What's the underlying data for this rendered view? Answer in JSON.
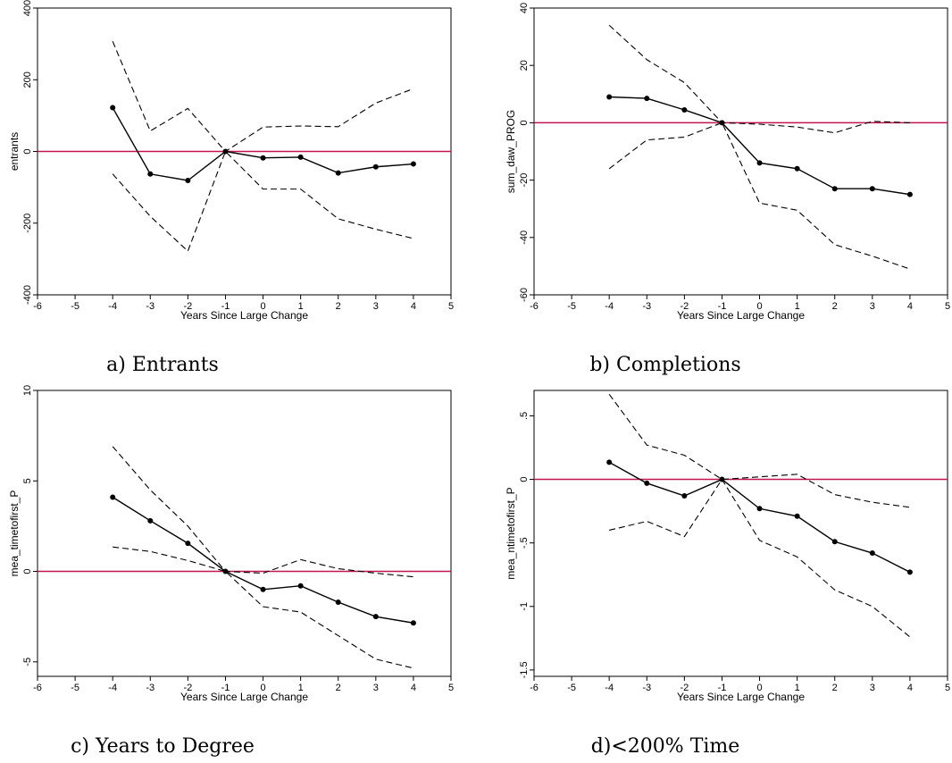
{
  "chart_data": [
    {
      "type": "line",
      "caption": "a) Entrants",
      "xlabel": "Years Since Large Change",
      "ylabel": "entrants",
      "xlim": [
        -6,
        5
      ],
      "ylim": [
        -400,
        400
      ],
      "xticks": [
        -6,
        -5,
        -4,
        -3,
        -2,
        -1,
        0,
        1,
        2,
        3,
        4,
        5
      ],
      "yticks": [
        -400,
        -200,
        0,
        200,
        400
      ],
      "ytick_labels": [
        "-400",
        "-200",
        "0",
        "200",
        "400"
      ],
      "reference_line": {
        "y": 0,
        "color": "#c1154f"
      },
      "x": [
        -4,
        -3,
        -2,
        -1,
        0,
        1,
        2,
        3,
        4
      ],
      "estimate": [
        122,
        -63,
        -81,
        0,
        -18,
        -16,
        -60,
        -43,
        -35
      ],
      "upper": [
        307,
        57,
        120,
        0,
        68,
        71,
        69,
        135,
        175
      ],
      "lower": [
        -63,
        -181,
        -278,
        0,
        -105,
        -105,
        -188,
        -217,
        -243
      ]
    },
    {
      "type": "line",
      "caption": "b) Completions",
      "xlabel": "Years Since Large Change",
      "ylabel": "sum_daw_PROG",
      "xlim": [
        -6,
        5
      ],
      "ylim": [
        -60,
        40
      ],
      "xticks": [
        -6,
        -5,
        -4,
        -3,
        -2,
        -1,
        0,
        1,
        2,
        3,
        4,
        5
      ],
      "yticks": [
        -60,
        -40,
        -20,
        0,
        20,
        40
      ],
      "ytick_labels": [
        "-60",
        "-40",
        "-20",
        "0",
        "20",
        "40"
      ],
      "reference_line": {
        "y": 0,
        "color": "#c1154f"
      },
      "x": [
        -4,
        -3,
        -2,
        -1,
        0,
        1,
        2,
        3,
        4
      ],
      "estimate": [
        9,
        8.5,
        4.5,
        0,
        -14,
        -16,
        -23,
        -23,
        -25
      ],
      "upper": [
        34,
        22,
        14,
        0,
        -0.5,
        -1.5,
        -3.5,
        0.5,
        0
      ],
      "lower": [
        -16,
        -6,
        -5,
        0,
        -28,
        -30.5,
        -42.5,
        -46.5,
        -51
      ]
    },
    {
      "type": "line",
      "caption": "c) Years to Degree",
      "xlabel": "Years Since Large Change",
      "ylabel": "mea_timetofirst_P",
      "xlim": [
        -6,
        5
      ],
      "ylim": [
        -5.8,
        10
      ],
      "xticks": [
        -6,
        -5,
        -4,
        -3,
        -2,
        -1,
        0,
        1,
        2,
        3,
        4,
        5
      ],
      "yticks": [
        -5,
        0,
        5,
        10
      ],
      "ytick_labels": [
        "-5",
        "0",
        "5",
        "10"
      ],
      "reference_line": {
        "y": 0,
        "color": "#c1154f"
      },
      "x": [
        -4,
        -3,
        -2,
        -1,
        0,
        1,
        2,
        3,
        4
      ],
      "estimate": [
        4.1,
        2.8,
        1.55,
        0,
        -1.0,
        -0.8,
        -1.7,
        -2.5,
        -2.85
      ],
      "upper": [
        6.9,
        4.5,
        2.5,
        0,
        -0.1,
        0.65,
        0.15,
        -0.1,
        -0.3
      ],
      "lower": [
        1.35,
        1.1,
        0.6,
        0,
        -1.95,
        -2.25,
        -3.55,
        -4.85,
        -5.35
      ]
    },
    {
      "type": "line",
      "caption": "d)<200% Time",
      "xlabel": "Years Since Large Change",
      "ylabel": "mea_ntimetofirst_P",
      "xlim": [
        -6,
        5
      ],
      "ylim": [
        -1.55,
        0.7
      ],
      "xticks": [
        -6,
        -5,
        -4,
        -3,
        -2,
        -1,
        0,
        1,
        2,
        3,
        4,
        5
      ],
      "yticks": [
        -1.5,
        -1,
        -0.5,
        0,
        0.5
      ],
      "ytick_labels": [
        "-1.5",
        "-1",
        "-.5",
        "0",
        ".5"
      ],
      "reference_line": {
        "y": 0,
        "color": "#c1154f"
      },
      "x": [
        -4,
        -3,
        -2,
        -1,
        0,
        1,
        2,
        3,
        4
      ],
      "estimate": [
        0.135,
        -0.03,
        -0.13,
        0,
        -0.23,
        -0.29,
        -0.49,
        -0.58,
        -0.73
      ],
      "upper": [
        0.67,
        0.27,
        0.19,
        0,
        0.02,
        0.04,
        -0.12,
        -0.18,
        -0.22
      ],
      "lower": [
        -0.4,
        -0.33,
        -0.45,
        0,
        -0.48,
        -0.61,
        -0.87,
        -1.0,
        -1.24
      ]
    }
  ]
}
